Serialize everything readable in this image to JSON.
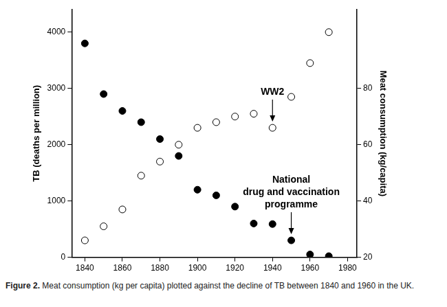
{
  "chart_data": {
    "type": "scatter",
    "caption_label": "Figure 2.",
    "caption": "Meat consumption (kg per capita) plotted against the decline of TB between 1840 and 1960 in the UK.",
    "y_label": "TB (deaths per million)",
    "y2_label": "Meat consumption (kg/capita)",
    "x": [
      1840,
      1850,
      1860,
      1870,
      1880,
      1890,
      1900,
      1910,
      1920,
      1930,
      1940,
      1950,
      1960,
      1970
    ],
    "series": [
      {
        "color": "#000000",
        "marker": "filled_circle",
        "values": [
          3800,
          2900,
          2600,
          2400,
          2100,
          1800,
          1200,
          1100,
          900,
          600,
          590,
          300,
          50,
          20
        ]
      },
      {
        "color": "#000000",
        "marker": "open_circle",
        "axis": "y2",
        "values": [
          26,
          31,
          37,
          49,
          54,
          60,
          66,
          68,
          70,
          71,
          66,
          77,
          89,
          100
        ]
      }
    ],
    "xlim": [
      1833,
      1985
    ],
    "xticks": [
      1840,
      1860,
      1880,
      1900,
      1920,
      1940,
      1960,
      1980
    ],
    "ylim": [
      0,
      4400
    ],
    "yticks": [
      0,
      1000,
      2000,
      3000,
      4000
    ],
    "y2lim": [
      20,
      108
    ],
    "y2ticks": [
      20,
      40,
      60,
      80
    ],
    "grid": false,
    "annotations": [
      {
        "text": [
          "WW2"
        ],
        "x": 1940,
        "y": 66,
        "axis": "y2"
      },
      {
        "text": [
          "National",
          "drug and vaccination",
          "programme"
        ],
        "x": 1950,
        "y": 300,
        "axis": "y"
      }
    ]
  }
}
